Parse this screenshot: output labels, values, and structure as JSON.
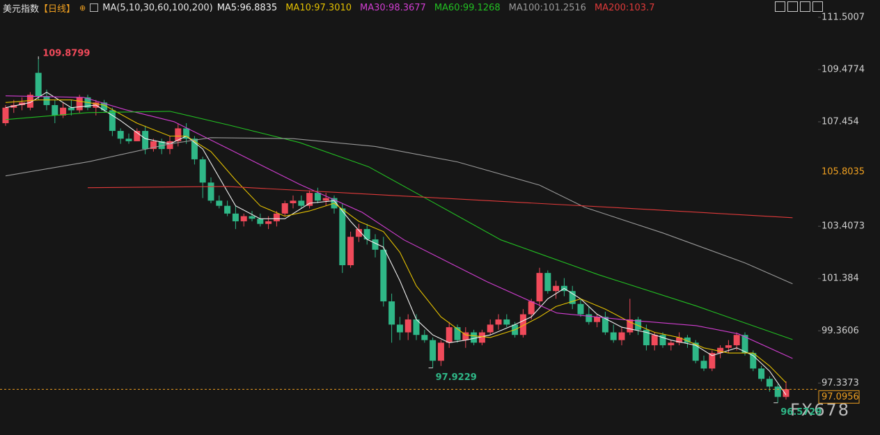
{
  "chart_data": {
    "type": "candlestick",
    "title": "美元指数",
    "period": "【日线】",
    "indicator": "MA(5,10,30,60,100,200)",
    "watermark": "FX678",
    "ylim": [
      95.46,
      112.17
    ],
    "yticks": [
      111.5007,
      109.4774,
      107.454,
      103.4073,
      101.384,
      99.3606,
      97.3373
    ],
    "marker_price": 105.8035,
    "last_price": 97.0956,
    "max_label": 109.8799,
    "min_labels": [
      97.9229,
      96.5729
    ],
    "up_color": "#f04a5a",
    "down_color": "#2fb787",
    "open": [
      107.4,
      108.0,
      108.1,
      108.0,
      109.35,
      108.45,
      108.1,
      107.7,
      108.0,
      107.9,
      108.4,
      108.0,
      108.2,
      107.9,
      107.1,
      106.8,
      106.7,
      107.1,
      106.4,
      106.7,
      106.4,
      106.7,
      107.2,
      106.8,
      106.0,
      105.1,
      104.4,
      104.2,
      103.9,
      103.6,
      103.8,
      103.7,
      103.5,
      103.6,
      103.9,
      104.3,
      104.4,
      104.2,
      104.7,
      104.4,
      104.5,
      104.1,
      101.9,
      103.0,
      103.3,
      102.9,
      102.5,
      100.5,
      99.6,
      99.3,
      99.8,
      99.2,
      99.0,
      98.2,
      98.9,
      99.5,
      99.0,
      99.3,
      98.9,
      99.3,
      99.6,
      99.8,
      99.6,
      99.2,
      100.0,
      100.5,
      101.6,
      100.9,
      101.1,
      100.9,
      100.4,
      100.0,
      99.7,
      99.9,
      99.3,
      99.0,
      99.3,
      99.8,
      99.4,
      98.8,
      99.2,
      98.8,
      98.9,
      99.1,
      98.9,
      98.2,
      97.9,
      98.5,
      98.7,
      98.8,
      99.2,
      98.5,
      97.9,
      97.5,
      97.2,
      96.8
    ],
    "high": [
      108.1,
      108.3,
      108.4,
      108.6,
      109.8799,
      108.7,
      108.3,
      108.2,
      108.3,
      108.5,
      108.5,
      108.3,
      108.3,
      108.0,
      107.2,
      107.0,
      107.2,
      107.3,
      106.8,
      106.8,
      106.9,
      107.4,
      107.4,
      106.9,
      106.1,
      105.3,
      104.6,
      104.4,
      104.2,
      103.9,
      104.0,
      103.9,
      103.8,
      104.0,
      104.4,
      104.6,
      104.6,
      104.8,
      104.9,
      104.7,
      104.6,
      104.3,
      103.2,
      103.5,
      103.5,
      103.1,
      103.0,
      100.8,
      99.9,
      100.0,
      100.0,
      99.4,
      99.1,
      99.0,
      99.7,
      99.6,
      99.5,
      99.4,
      99.4,
      99.8,
      100.0,
      100.0,
      99.7,
      100.2,
      100.6,
      101.8,
      101.7,
      101.3,
      101.4,
      101.1,
      100.6,
      100.3,
      100.0,
      100.1,
      99.6,
      99.5,
      100.6,
      99.9,
      99.6,
      99.3,
      99.3,
      99.0,
      99.3,
      99.2,
      99.0,
      98.4,
      98.6,
      98.8,
      99.0,
      99.3,
      99.3,
      98.6,
      98.0,
      97.6,
      97.3,
      97.4
    ],
    "low": [
      107.3,
      107.8,
      107.9,
      107.9,
      108.3,
      107.9,
      107.4,
      107.6,
      107.7,
      107.8,
      107.9,
      107.7,
      107.8,
      106.9,
      106.6,
      106.6,
      106.7,
      106.2,
      106.3,
      106.2,
      106.2,
      106.5,
      106.6,
      105.8,
      104.5,
      104.3,
      104.1,
      103.8,
      103.3,
      103.4,
      103.6,
      103.4,
      103.3,
      103.4,
      103.8,
      104.1,
      104.1,
      104.1,
      104.3,
      104.2,
      103.9,
      101.6,
      101.8,
      102.8,
      102.7,
      102.2,
      100.3,
      98.9,
      99.0,
      99.0,
      99.0,
      98.9,
      97.9229,
      98.0,
      98.7,
      98.9,
      98.7,
      98.8,
      98.8,
      99.2,
      99.4,
      99.5,
      99.1,
      99.1,
      99.8,
      100.3,
      100.8,
      100.6,
      100.7,
      100.2,
      99.9,
      99.6,
      99.5,
      99.2,
      98.9,
      98.8,
      99.2,
      99.2,
      98.6,
      98.6,
      98.7,
      98.6,
      98.8,
      98.7,
      98.1,
      97.8,
      97.8,
      98.3,
      98.5,
      98.6,
      98.4,
      97.8,
      97.4,
      97.0,
      96.5729,
      96.7
    ],
    "close": [
      108.0,
      108.1,
      108.2,
      108.5,
      108.45,
      108.1,
      107.7,
      108.0,
      107.9,
      108.4,
      108.0,
      108.2,
      107.9,
      107.1,
      106.8,
      106.7,
      107.1,
      106.4,
      106.7,
      106.4,
      106.7,
      107.2,
      106.8,
      106.0,
      105.1,
      104.4,
      104.2,
      103.9,
      103.6,
      103.8,
      103.7,
      103.5,
      103.6,
      103.9,
      104.3,
      104.4,
      104.2,
      104.7,
      104.4,
      104.5,
      104.1,
      101.9,
      103.0,
      103.3,
      102.9,
      102.5,
      100.5,
      99.6,
      99.3,
      99.8,
      99.2,
      99.0,
      98.2,
      98.9,
      99.5,
      99.0,
      99.3,
      98.9,
      99.3,
      99.6,
      99.8,
      99.6,
      99.2,
      100.0,
      100.5,
      101.6,
      100.9,
      101.1,
      100.9,
      100.4,
      100.0,
      99.7,
      99.9,
      99.3,
      99.0,
      99.3,
      99.8,
      99.4,
      98.8,
      99.2,
      98.8,
      98.9,
      99.1,
      98.9,
      98.2,
      97.9,
      98.5,
      98.7,
      98.8,
      99.2,
      98.5,
      97.9,
      97.5,
      97.2,
      96.8,
      97.1
    ],
    "series": [
      {
        "name": "MA5:96.8835",
        "color": "#f2f2f2",
        "x": [
          0,
          3,
          5,
          8,
          11,
          14,
          17,
          20,
          22,
          24,
          26,
          28,
          31,
          34,
          37,
          40,
          42,
          44,
          46,
          48,
          50,
          52,
          54,
          56,
          59,
          62,
          64,
          66,
          68,
          70,
          72,
          75,
          78,
          81,
          84,
          86,
          89,
          91,
          93,
          95
        ],
        "values": [
          108.0,
          108.2,
          108.6,
          108.0,
          108.1,
          107.5,
          106.8,
          106.6,
          106.9,
          106.4,
          105.3,
          104.2,
          103.7,
          103.7,
          104.3,
          104.4,
          103.6,
          102.9,
          102.6,
          101.3,
          99.8,
          99.2,
          98.9,
          99.0,
          99.2,
          99.6,
          99.9,
          100.6,
          101.0,
          100.6,
          100.0,
          99.5,
          99.3,
          99.0,
          98.8,
          98.4,
          98.7,
          98.4,
          97.8,
          96.88
        ]
      },
      {
        "name": "MA10:97.3010",
        "color": "#e6c200",
        "x": [
          0,
          4,
          8,
          12,
          16,
          20,
          22,
          25,
          28,
          31,
          34,
          37,
          40,
          43,
          46,
          48,
          50,
          53,
          56,
          59,
          62,
          65,
          67,
          70,
          73,
          76,
          79,
          82,
          85,
          88,
          91,
          93,
          95
        ],
        "values": [
          108.2,
          108.3,
          108.3,
          108.1,
          107.4,
          106.9,
          106.9,
          106.3,
          105.2,
          104.2,
          103.8,
          104.0,
          104.3,
          103.6,
          103.2,
          102.4,
          101.1,
          99.9,
          99.2,
          99.1,
          99.4,
          99.9,
          100.3,
          100.6,
          100.2,
          99.7,
          99.3,
          99.1,
          98.7,
          98.5,
          98.5,
          98.0,
          97.35
        ]
      },
      {
        "name": "MA30:98.3677",
        "color": "#d23ed2",
        "x": [
          0,
          9.5,
          14.6,
          20.5,
          27.3,
          35.8,
          43.4,
          48.5,
          58.6,
          67.1,
          75.6,
          84.1,
          89.2,
          95.8
        ],
        "values": [
          108.46,
          108.4,
          107.92,
          107.46,
          106.38,
          105.03,
          103.95,
          102.88,
          101.26,
          100.05,
          99.78,
          99.56,
          99.24,
          98.29
        ]
      },
      {
        "name": "MA60:99.1268",
        "color": "#22c022",
        "x": [
          0,
          10,
          20,
          27.3,
          35.8,
          44.2,
          51.9,
          60.3,
          72.2,
          84.1,
          95.8
        ],
        "values": [
          107.54,
          107.81,
          107.86,
          107.32,
          106.65,
          105.71,
          104.36,
          102.88,
          101.53,
          100.32,
          99.02
        ]
      },
      {
        "name": "MA100:101.2516",
        "color": "#9a9a9a",
        "x": [
          0,
          10,
          20,
          25,
          35,
          45,
          55,
          65,
          70.5,
          80,
          90,
          95.8
        ],
        "values": [
          105.36,
          105.9,
          106.6,
          106.84,
          106.8,
          106.5,
          105.9,
          105.0,
          104.14,
          103.15,
          101.99,
          101.18
        ]
      },
      {
        "name": "MA200:103.7",
        "color": "#e03a3a",
        "x": [
          10,
          27,
          50,
          76,
          95.8
        ],
        "values": [
          104.9,
          104.95,
          104.55,
          104.1,
          103.74
        ]
      }
    ]
  }
}
